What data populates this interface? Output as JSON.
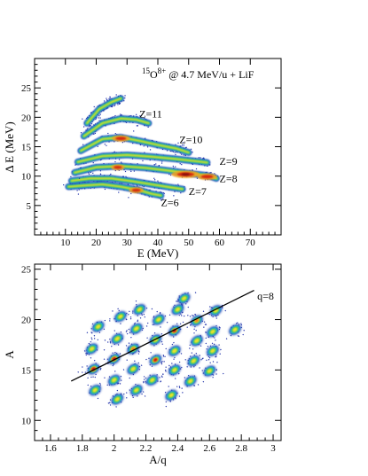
{
  "chart_data": [
    {
      "type": "heatmap",
      "title": "",
      "xlabel": "E (MeV)",
      "ylabel": "Δ E (MeV)",
      "xlim": [
        0,
        80
      ],
      "ylim": [
        0,
        30
      ],
      "xticks": [
        10,
        20,
        30,
        40,
        50,
        60,
        70
      ],
      "yticks": [
        5,
        10,
        15,
        20,
        25
      ],
      "grid": false,
      "annotation": {
        "base": "O",
        "mass": "15",
        "charge": "8+",
        "rest": " @ 4.7 MeV/u + LiF"
      },
      "bands": [
        {
          "label": "Z=6",
          "label_pos": [
            41,
            4.9
          ],
          "points": [
            [
              11,
              8.2
            ],
            [
              16,
              8.4
            ],
            [
              22,
              8.6
            ],
            [
              28,
              8.2
            ],
            [
              34,
              7.6
            ],
            [
              38,
              7.0
            ],
            [
              41,
              6.7
            ]
          ]
        },
        {
          "label": "Z=7",
          "label_pos": [
            50,
            6.8
          ],
          "points": [
            [
              12,
              9.2
            ],
            [
              18,
              9.6
            ],
            [
              25,
              9.6
            ],
            [
              32,
              9.1
            ],
            [
              38,
              8.6
            ],
            [
              44,
              8.1
            ],
            [
              48,
              7.8
            ]
          ]
        },
        {
          "label": "Z=8",
          "label_pos": [
            60,
            9.0
          ],
          "points": [
            [
              13,
              10.6
            ],
            [
              20,
              11.5
            ],
            [
              28,
              11.7
            ],
            [
              36,
              11.4
            ],
            [
              44,
              10.9
            ],
            [
              51,
              10.4
            ],
            [
              56,
              10.1
            ],
            [
              59,
              9.6
            ]
          ]
        },
        {
          "label": "Z=9",
          "label_pos": [
            60,
            11.9
          ],
          "points": [
            [
              14,
              12.4
            ],
            [
              22,
              13.4
            ],
            [
              30,
              13.6
            ],
            [
              38,
              13.3
            ],
            [
              46,
              12.9
            ],
            [
              53,
              12.5
            ],
            [
              56,
              12.3
            ]
          ]
        },
        {
          "label": "Z=10",
          "label_pos": [
            47,
            15.6
          ],
          "points": [
            [
              15,
              14.3
            ],
            [
              22,
              16.3
            ],
            [
              28,
              16.6
            ],
            [
              34,
              16.0
            ],
            [
              40,
              15.3
            ],
            [
              46,
              14.7
            ],
            [
              50,
              14.0
            ]
          ]
        },
        {
          "label": "Z=11",
          "label_pos": [
            34,
            20.0
          ],
          "points": [
            [
              16,
              16.8
            ],
            [
              22,
              19.0
            ],
            [
              28,
              19.8
            ],
            [
              33,
              19.6
            ],
            [
              37,
              19.0
            ]
          ]
        },
        {
          "label": "",
          "label_pos": null,
          "points": [
            [
              17,
              19.0
            ],
            [
              21,
              21.4
            ],
            [
              25,
              22.6
            ],
            [
              28,
              23.2
            ]
          ]
        }
      ],
      "hot_spots": [
        {
          "x": 28,
          "y": 16.4,
          "w": 0.5
        },
        {
          "x": 49,
          "y": 10.3,
          "w": 1.0
        },
        {
          "x": 56,
          "y": 9.9,
          "w": 0.6
        },
        {
          "x": 27,
          "y": 11.5,
          "w": 0.3
        },
        {
          "x": 33,
          "y": 7.6,
          "w": 0.35
        }
      ]
    },
    {
      "type": "heatmap",
      "title": "",
      "xlabel": "A/q",
      "ylabel": "A",
      "xlim": [
        1.5,
        3.05
      ],
      "ylim": [
        8,
        25.5
      ],
      "xticks": [
        1.6,
        1.8,
        2.0,
        2.2,
        2.4,
        2.6,
        2.8,
        3.0
      ],
      "xtick_labels": [
        "1.6",
        "1.8",
        "2",
        "2.2",
        "2.4",
        "2.6",
        "2.8",
        "3"
      ],
      "yticks": [
        10,
        15,
        20,
        25
      ],
      "grid": false,
      "fit_line": {
        "label": "q=8",
        "x": [
          1.73,
          2.88
        ],
        "y": [
          13.9,
          22.9
        ]
      },
      "spots": [
        [
          1.88,
          13.0,
          0.3
        ],
        [
          1.87,
          15.1,
          0.95
        ],
        [
          1.86,
          17.1,
          0.4
        ],
        [
          1.9,
          19.3,
          0.3
        ],
        [
          2.02,
          12.1,
          0.35
        ],
        [
          2.0,
          14.0,
          0.4
        ],
        [
          2.0,
          16.1,
          0.9
        ],
        [
          2.02,
          18.1,
          0.4
        ],
        [
          2.04,
          20.3,
          0.3
        ],
        [
          2.14,
          13.0,
          0.3
        ],
        [
          2.12,
          15.1,
          0.4
        ],
        [
          2.12,
          17.1,
          0.55
        ],
        [
          2.14,
          19.1,
          0.45
        ],
        [
          2.16,
          21.0,
          0.3
        ],
        [
          2.24,
          14.0,
          0.3
        ],
        [
          2.26,
          16.0,
          0.8
        ],
        [
          2.26,
          18.0,
          0.45
        ],
        [
          2.28,
          20.0,
          0.35
        ],
        [
          2.36,
          12.5,
          0.3
        ],
        [
          2.38,
          15.0,
          0.35
        ],
        [
          2.38,
          16.9,
          0.45
        ],
        [
          2.38,
          18.9,
          0.85
        ],
        [
          2.4,
          21.0,
          0.35
        ],
        [
          2.44,
          22.1,
          0.35
        ],
        [
          2.48,
          13.9,
          0.3
        ],
        [
          2.5,
          15.9,
          0.35
        ],
        [
          2.52,
          17.9,
          0.4
        ],
        [
          2.52,
          19.9,
          0.5
        ],
        [
          2.6,
          14.9,
          0.3
        ],
        [
          2.62,
          16.9,
          0.3
        ],
        [
          2.62,
          18.8,
          0.35
        ],
        [
          2.64,
          20.9,
          0.4
        ],
        [
          2.76,
          19.0,
          0.3
        ]
      ]
    }
  ]
}
